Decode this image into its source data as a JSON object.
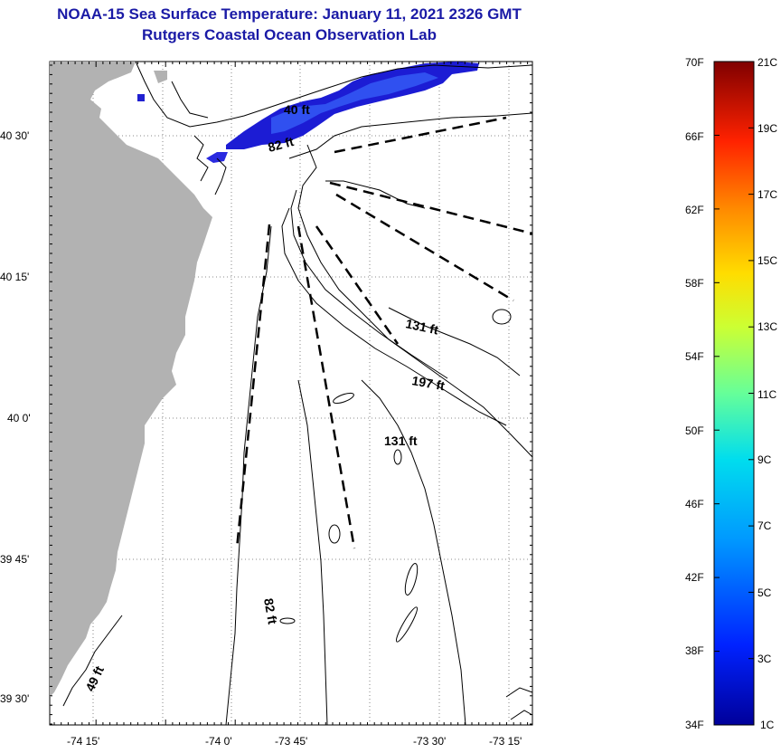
{
  "title": {
    "line1": "NOAA-15 Sea Surface Temperature:  January 11, 2021 2326 GMT",
    "line2": "Rutgers Coastal Ocean Observation Lab"
  },
  "axes": {
    "lat_labels": [
      "40 30'",
      "40 15'",
      "40 0'",
      "39 45'",
      "39 30'"
    ],
    "lon_labels": [
      "-74 15'",
      "-74 0'",
      "-73 45'",
      "-73 30'",
      "-73 15'"
    ]
  },
  "contour_labels": [
    "40 ft",
    "82 ft",
    "131 ft",
    "197 ft",
    "131 ft",
    "82 ft",
    "49 ft"
  ],
  "colorbar": {
    "f_labels": [
      "70F",
      "66F",
      "62F",
      "58F",
      "54F",
      "50F",
      "46F",
      "42F",
      "38F",
      "34F"
    ],
    "c_labels": [
      "21C",
      "19C",
      "17C",
      "15C",
      "13C",
      "11C",
      "9C",
      "7C",
      "5C",
      "3C",
      "1C"
    ],
    "colors": [
      "#800000",
      "#cc0000",
      "#ff3300",
      "#ff8800",
      "#ffdd00",
      "#ccff33",
      "#66ff99",
      "#00ddee",
      "#0099ff",
      "#0033ff",
      "#00009a"
    ]
  },
  "colors": {
    "land": "#b2b2b2",
    "sst_patch_dark": "#1c1cd4",
    "sst_patch_mid": "#2c44ee",
    "title": "#1a1aa6"
  }
}
